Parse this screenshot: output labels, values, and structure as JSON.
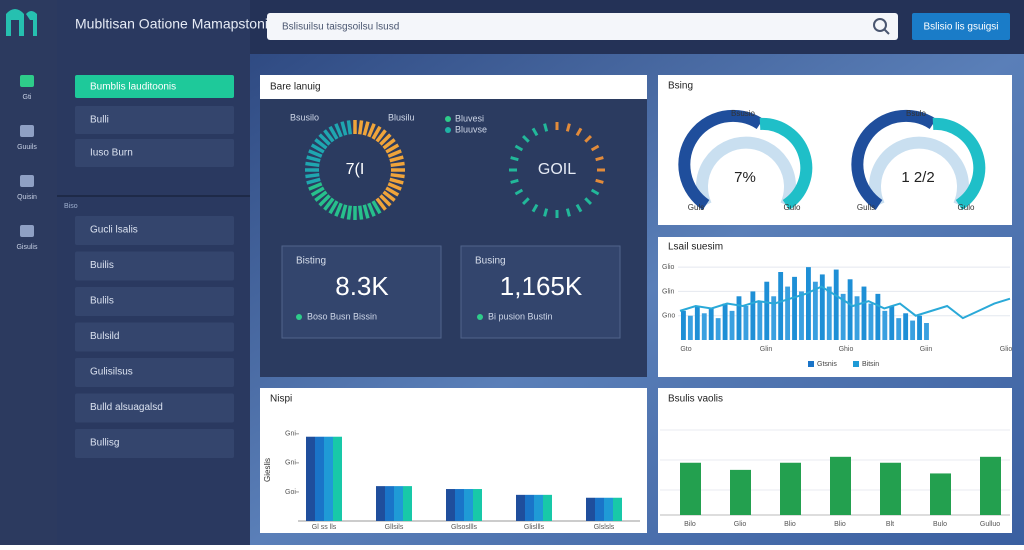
{
  "app_title": "Mubltisan Oatione Mamapstonit",
  "rail": [
    "Gti",
    "Guuils",
    "Quisin",
    "Gisulis"
  ],
  "sidebar": {
    "items": [
      "Bumblis lauditoonis",
      "Bulli",
      "Iuso Burn"
    ],
    "section": "Biso",
    "items2": [
      "Gucli lsalis",
      "Builis",
      "Bulils",
      "Bulsild",
      "Gulisilsus",
      "Bulld alsuagalsd",
      "Bullisg"
    ]
  },
  "topbar": {
    "search": "Bslisuilsu taisgsoilsu lsusd",
    "button": "Bslisio lis gsuigsi"
  },
  "overview": {
    "title": "Bare lanuig",
    "left_label": "Bsusilo",
    "mid_label": "Blusilu",
    "legend": [
      "Bluvesi",
      "Bluuvse"
    ],
    "donut1": "7(I",
    "donut2": "GOIL",
    "kpi1": {
      "label": "Bisting",
      "value": "8.3K",
      "note": "Boso Busn Bissin"
    },
    "kpi2": {
      "label": "Busing",
      "value": "1,165K",
      "note": "Bi pusion Bustin"
    }
  },
  "status": {
    "title": "Bsing",
    "g1_label": "Bsusio",
    "g1_value": "7%",
    "g1_min": "Guls",
    "g1_max": "Gulo",
    "g2_label": "Bsulo",
    "g2_value": "1 2/2",
    "g2_min": "Gulis",
    "g2_max": "Gulo"
  },
  "trend": {
    "title": "Lsail suesim",
    "ylim": [
      0,
      35
    ],
    "yticks": [
      {
        "value": 30,
        "label": "Glio"
      },
      {
        "value": 20,
        "label": "Glin"
      },
      {
        "value": 10,
        "label": "Gno"
      }
    ],
    "xlabels": [
      "Gto",
      "Glin",
      "Ghio",
      "Giin",
      "Glio"
    ],
    "series": [
      {
        "name": "Gtsnis",
        "color": "#1e8fd6",
        "values": [
          12,
          10,
          14,
          11,
          13,
          9,
          15,
          12,
          18,
          14,
          20,
          16,
          24,
          18,
          28,
          22,
          26,
          20,
          30,
          24,
          27,
          22,
          29,
          19,
          25,
          18,
          22,
          15,
          19,
          12,
          14,
          9,
          11,
          8,
          10,
          7
        ]
      },
      {
        "name": "Bitsin",
        "color": "#1f4e9c",
        "values": [
          12,
          14,
          13,
          15,
          14,
          16,
          15,
          17,
          19,
          22,
          18,
          14,
          16,
          13,
          15,
          10,
          12,
          14,
          9,
          12,
          15,
          17
        ]
      }
    ]
  },
  "groups": {
    "title": "Nispi",
    "ylabel": "Gieslis",
    "ylim": [
      0,
      32
    ],
    "yticks": [
      {
        "value": 30,
        "label": "Gni"
      },
      {
        "value": 20,
        "label": "Gni"
      },
      {
        "value": 10,
        "label": "Goi"
      }
    ],
    "categories": [
      "Gl ss lls",
      "Gllsils",
      "Glsosllls",
      "Glisllls",
      "Glslsls"
    ],
    "series": [
      {
        "color": "#1f4e9c",
        "values": [
          29,
          12,
          11,
          9,
          8
        ]
      },
      {
        "color": "#1a74c8",
        "values": [
          29,
          12,
          11,
          9,
          8
        ]
      },
      {
        "color": "#1f9ad6",
        "values": [
          29,
          12,
          11,
          9,
          8
        ]
      },
      {
        "color": "#18c8a8",
        "values": [
          29,
          12,
          11,
          9,
          8
        ]
      }
    ]
  },
  "summary": {
    "title": "Bsulis vaolis",
    "ylim": [
      0,
      80
    ],
    "color": "#23a04f",
    "categories": [
      "Bilo",
      "Glio",
      "Blio",
      "Blio",
      "Blt",
      "Bulo",
      "Gulluo"
    ],
    "values": [
      44,
      38,
      44,
      49,
      44,
      35,
      49
    ]
  }
}
